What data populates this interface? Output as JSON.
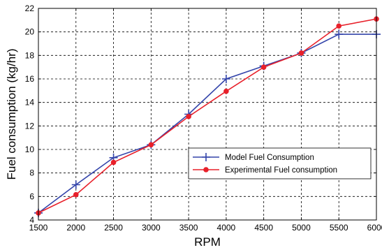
{
  "chart_data": {
    "type": "line",
    "title": "",
    "xlabel": "RPM",
    "ylabel": "Fuel consumption (kg/hr)",
    "xlim": [
      1500,
      6000
    ],
    "ylim": [
      4,
      22
    ],
    "xticks": [
      1500,
      2000,
      2500,
      3000,
      3500,
      4000,
      4500,
      5000,
      5500,
      6000
    ],
    "yticks": [
      4,
      6,
      8,
      10,
      12,
      14,
      16,
      18,
      20,
      22
    ],
    "grid": true,
    "legend_position": "right",
    "x": [
      1500,
      2000,
      2500,
      3000,
      3500,
      4000,
      4500,
      5000,
      5500,
      6000
    ],
    "series": [
      {
        "name": "Model Fuel Consumption",
        "color": "#3344aa",
        "marker": "plus",
        "values": [
          4.6,
          7.0,
          9.3,
          10.4,
          13.0,
          16.0,
          17.1,
          18.2,
          19.8,
          19.8
        ]
      },
      {
        "name": "Experimental Fuel consumption",
        "color": "#e8202a",
        "marker": "circle",
        "values": [
          4.6,
          6.15,
          8.9,
          10.4,
          12.8,
          14.95,
          17.0,
          18.2,
          20.5,
          21.1
        ]
      }
    ]
  }
}
